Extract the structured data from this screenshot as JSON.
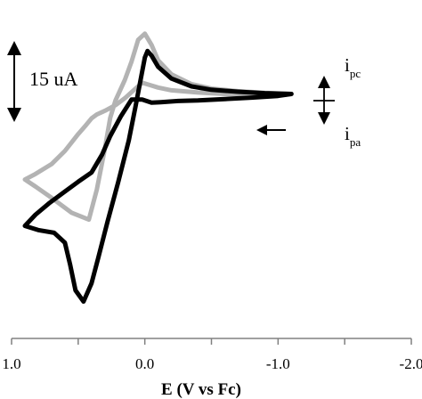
{
  "chart_data": {
    "type": "line",
    "xlabel": "E (V vs Fc)",
    "xlim": [
      1.0,
      -2.0
    ],
    "x_ticks": [
      1.0,
      0.5,
      0.0,
      -0.5,
      -1.0,
      -1.5,
      -2.0
    ],
    "x_tick_labels": [
      "1.0",
      "0.0",
      "-1.0",
      "-2.0"
    ],
    "ylim": [
      -85,
      35
    ],
    "grid": false,
    "scale_bar": {
      "label": "15 uA",
      "value": 15
    },
    "annotations": {
      "cathodic_label": "i",
      "cathodic_sub": "pc",
      "anodic_label": "i",
      "anodic_sub": "pa"
    },
    "series": [
      {
        "color": "#b3b3b3",
        "x": [
          -1.1,
          -0.9,
          -0.7,
          -0.5,
          -0.35,
          -0.2,
          -0.1,
          -0.05,
          0.0,
          0.05,
          0.1,
          0.15,
          0.22,
          0.26,
          0.3,
          0.36,
          0.42,
          0.55,
          0.7,
          0.82,
          0.9,
          0.82,
          0.7,
          0.6,
          0.5,
          0.44,
          0.4,
          0.36,
          0.3,
          0.22,
          0.15,
          0.08,
          0.02,
          -0.03,
          -0.1,
          -0.2,
          -0.4,
          -0.6,
          -0.8,
          -1.0,
          -1.1
        ],
        "y": [
          1.5,
          1.9,
          2.5,
          3.4,
          5.0,
          8.5,
          13.5,
          19.0,
          23.0,
          20.8,
          13.0,
          6.5,
          -0.8,
          -7.0,
          -18.0,
          -32.5,
          -43.3,
          -40.8,
          -35.5,
          -31.5,
          -29.0,
          -27.0,
          -23.5,
          -18.8,
          -12.8,
          -9.5,
          -7.2,
          -5.8,
          -4.5,
          -2.5,
          0.0,
          3.0,
          5.5,
          4.8,
          3.8,
          2.8,
          2.0,
          1.5,
          1.2,
          1.0,
          1.5
        ]
      },
      {
        "color": "#000000",
        "x": [
          -1.1,
          -0.9,
          -0.7,
          -0.5,
          -0.35,
          -0.2,
          -0.1,
          -0.05,
          -0.02,
          0.0,
          0.03,
          0.07,
          0.12,
          0.2,
          0.28,
          0.35,
          0.4,
          0.46,
          0.52,
          0.56,
          0.6,
          0.68,
          0.8,
          0.9,
          0.82,
          0.72,
          0.62,
          0.5,
          0.4,
          0.32,
          0.26,
          0.18,
          0.1,
          0.02,
          -0.05,
          -0.12,
          -0.25,
          -0.4,
          -0.6,
          -0.8,
          -1.0,
          -1.1
        ],
        "y": [
          1.5,
          1.8,
          2.3,
          3.0,
          4.2,
          7.0,
          11.2,
          15.2,
          16.8,
          14.5,
          7.0,
          -3.0,
          -15.0,
          -30.0,
          -44.0,
          -57.0,
          -66.0,
          -72.5,
          -68.5,
          -59.5,
          -51.5,
          -48.0,
          -47.0,
          -45.5,
          -41.5,
          -37.5,
          -34.0,
          -29.8,
          -26.5,
          -20.0,
          -13.5,
          -6.5,
          -0.5,
          -0.5,
          -1.6,
          -1.4,
          -1.0,
          -0.8,
          -0.3,
          0.2,
          0.8,
          1.5
        ]
      }
    ]
  }
}
